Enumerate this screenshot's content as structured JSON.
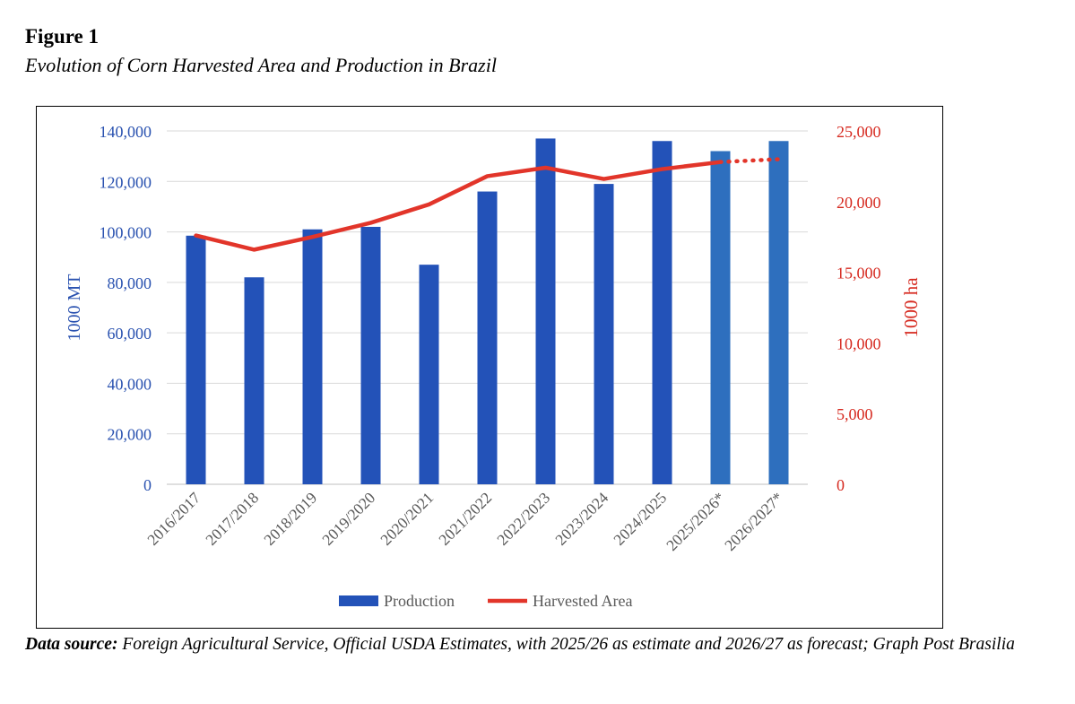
{
  "figure": {
    "label": "Figure 1",
    "title": "Evolution of Corn Harvested Area and Production in Brazil"
  },
  "source": {
    "label": "Data source:",
    "text": "Foreign Agricultural Service, Official USDA Estimates, with 2025/26 as estimate and 2026/27 as forecast; Graph Post Brasilia"
  },
  "colors": {
    "bar_primary": "#2352b8",
    "bar_projected": "#2e6fbe",
    "line": "#e2352a",
    "left_axis_text": "#2a52b0",
    "right_axis_text": "#d62a20",
    "grid": "#d9d9d9"
  },
  "chart_data": {
    "type": "bar",
    "categories": [
      "2016/2017",
      "2017/2018",
      "2018/2019",
      "2019/2020",
      "2020/2021",
      "2021/2022",
      "2022/2023",
      "2023/2024",
      "2024/2025",
      "2025/2026*",
      "2026/2027*"
    ],
    "series": [
      {
        "name": "Production",
        "type": "bar",
        "axis": "left",
        "values": [
          98500,
          82000,
          101000,
          102000,
          87000,
          116000,
          137000,
          119000,
          136000,
          132000,
          136000
        ],
        "projected_from_index": 9
      },
      {
        "name": "Harvested Area",
        "type": "line",
        "axis": "right",
        "values": [
          17600,
          16600,
          17500,
          18500,
          19800,
          21800,
          22400,
          21600,
          22300,
          22800,
          23000
        ],
        "dotted_from_index": 9
      }
    ],
    "ylabel_left": "1000 MT",
    "ylabel_right": "1000 ha",
    "ylim_left": [
      0,
      140000
    ],
    "ylim_right": [
      0,
      25000
    ],
    "yticks_left": [
      "0",
      "20,000",
      "40,000",
      "60,000",
      "80,000",
      "100,000",
      "120,000",
      "140,000"
    ],
    "yticks_right": [
      "0",
      "5,000",
      "10,000",
      "15,000",
      "20,000",
      "25,000"
    ],
    "grid": true,
    "legend_position": "bottom"
  }
}
